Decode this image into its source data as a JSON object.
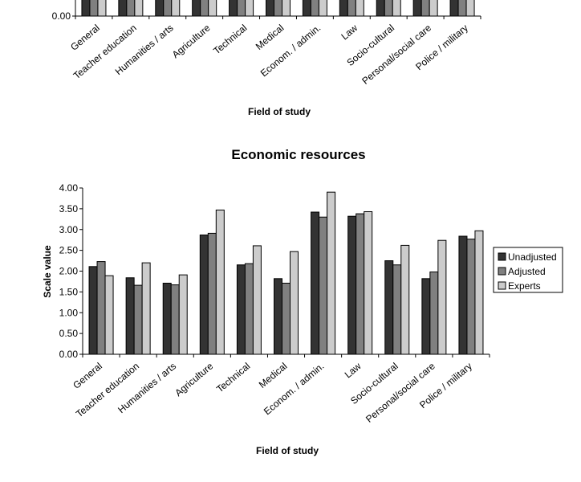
{
  "chart_data": [
    {
      "type": "bar",
      "title": "",
      "xlabel": "Field of study",
      "ylabel": "",
      "categories": [
        "General",
        "Teacher education",
        "Humanities / arts",
        "Agriculture",
        "Technical",
        "Medical",
        "Econom. / admin.",
        "Law",
        "Socio-cultural",
        "Personal/social care",
        "Police / military"
      ],
      "yticks": [
        "0.00"
      ],
      "series_colors": [
        "#333333",
        "#808080",
        "#cccccc"
      ]
    },
    {
      "type": "bar",
      "title": "Economic resources",
      "xlabel": "Field of study",
      "ylabel": "Scale value",
      "ylim": [
        0,
        4
      ],
      "yticks": [
        "0.00",
        "0.50",
        "1.00",
        "1.50",
        "2.00",
        "2.50",
        "3.00",
        "3.50",
        "4.00"
      ],
      "categories": [
        "General",
        "Teacher education",
        "Humanities / arts",
        "Agriculture",
        "Technical",
        "Medical",
        "Econom. / admin.",
        "Law",
        "Socio-cultural",
        "Personal/social care",
        "Police / military"
      ],
      "series": [
        {
          "name": "Unadjusted",
          "color": "#333333",
          "values": [
            2.11,
            1.84,
            1.71,
            2.87,
            2.15,
            1.82,
            3.42,
            3.32,
            2.25,
            1.82,
            2.84
          ]
        },
        {
          "name": "Adjusted",
          "color": "#808080",
          "values": [
            2.23,
            1.66,
            1.67,
            2.91,
            2.18,
            1.71,
            3.3,
            3.38,
            2.15,
            1.98,
            2.77
          ]
        },
        {
          "name": "Experts",
          "color": "#cccccc",
          "values": [
            1.89,
            2.2,
            1.91,
            3.47,
            2.61,
            2.47,
            3.9,
            3.43,
            2.62,
            2.74,
            2.97
          ]
        }
      ],
      "legend": "right",
      "grid": false
    }
  ]
}
